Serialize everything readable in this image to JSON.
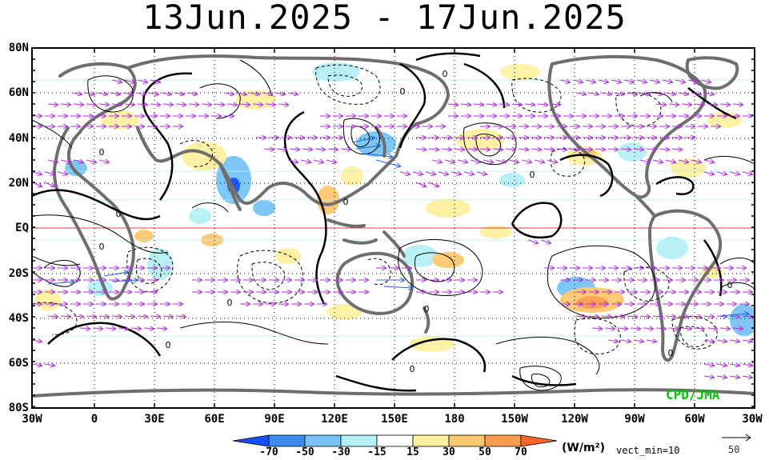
{
  "title": "13Jun.2025 - 17Jun.2025",
  "lat_labels": [
    "80N",
    "60N",
    "40N",
    "20N",
    "EQ",
    "20S",
    "40S",
    "60S",
    "80S"
  ],
  "lon_labels": [
    "30W",
    "0",
    "30E",
    "60E",
    "90E",
    "120E",
    "150E",
    "180",
    "150W",
    "120W",
    "90W",
    "60W",
    "30W"
  ],
  "colorbar": {
    "levels": [
      "-70",
      "-50",
      "-30",
      "-15",
      "15",
      "30",
      "50",
      "70"
    ],
    "colors": [
      "#1450ff",
      "#3c8cf0",
      "#78c3f5",
      "#b4f0f5",
      "#ffffff",
      "#fff0a0",
      "#ffc870",
      "#ff9b50",
      "#ff6428"
    ]
  },
  "units": "(W/m²)",
  "vect_min": "vect_min=10",
  "ref_vector": "50",
  "credit": "CPD/JMA",
  "contour_labels": [
    "0",
    "0",
    "0",
    "0",
    "0",
    "0",
    "0",
    "0",
    "0",
    "0",
    "0",
    "0",
    "0"
  ]
}
